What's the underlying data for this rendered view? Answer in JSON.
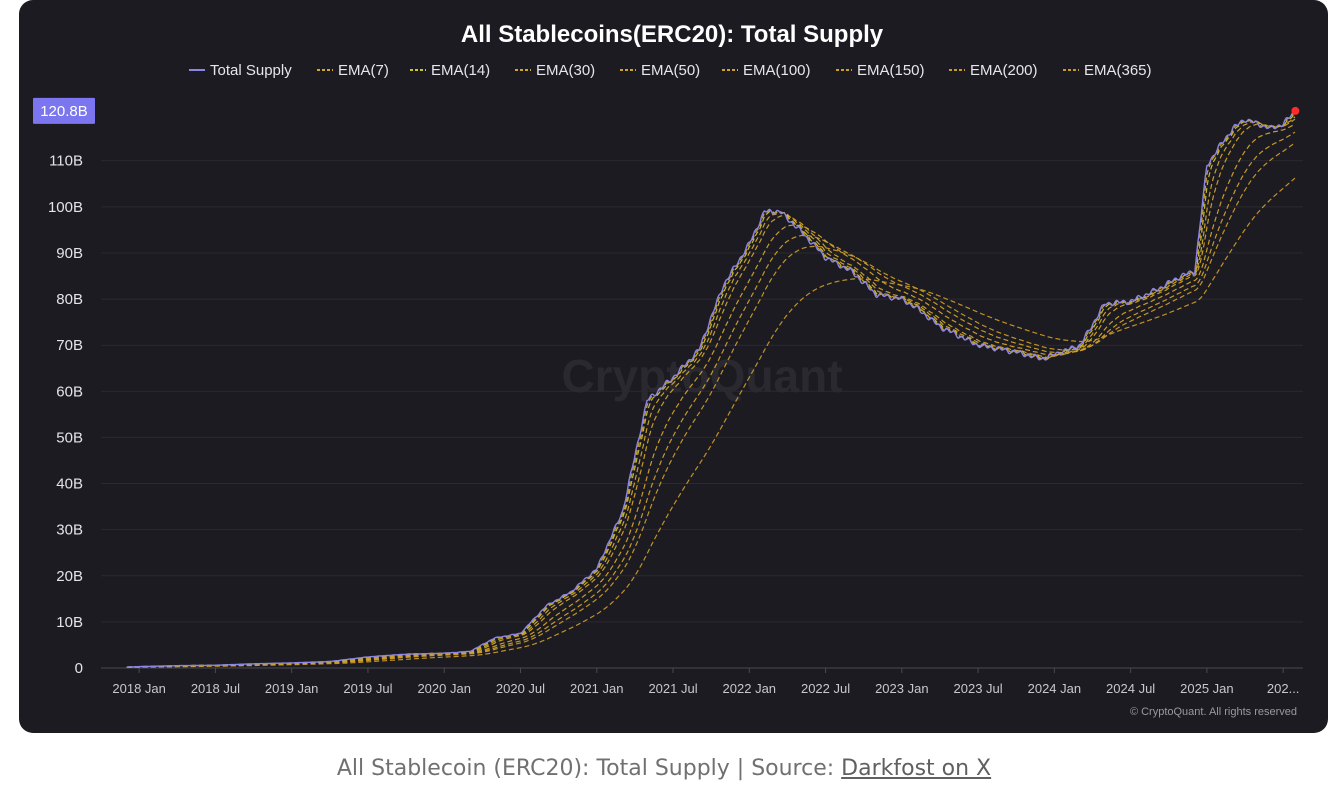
{
  "chart_data": {
    "type": "line",
    "title": "All Stablecoins(ERC20): Total Supply",
    "ylabel": "",
    "xlabel": "",
    "ylim": [
      0,
      121
    ],
    "yticks": [
      {
        "v": 0,
        "label": "0"
      },
      {
        "v": 10,
        "label": "10B"
      },
      {
        "v": 20,
        "label": "20B"
      },
      {
        "v": 30,
        "label": "30B"
      },
      {
        "v": 40,
        "label": "40B"
      },
      {
        "v": 50,
        "label": "50B"
      },
      {
        "v": 60,
        "label": "60B"
      },
      {
        "v": 70,
        "label": "70B"
      },
      {
        "v": 80,
        "label": "80B"
      },
      {
        "v": 90,
        "label": "90B"
      },
      {
        "v": 100,
        "label": "100B"
      },
      {
        "v": 110,
        "label": "110B"
      }
    ],
    "xlim": [
      2017.75,
      2025.63
    ],
    "xticks": [
      {
        "v": 2018.0,
        "label": "2018 Jan"
      },
      {
        "v": 2018.5,
        "label": "2018 Jul"
      },
      {
        "v": 2019.0,
        "label": "2019 Jan"
      },
      {
        "v": 2019.5,
        "label": "2019 Jul"
      },
      {
        "v": 2020.0,
        "label": "2020 Jan"
      },
      {
        "v": 2020.5,
        "label": "2020 Jul"
      },
      {
        "v": 2021.0,
        "label": "2021 Jan"
      },
      {
        "v": 2021.5,
        "label": "2021 Jul"
      },
      {
        "v": 2022.0,
        "label": "2022 Jan"
      },
      {
        "v": 2022.5,
        "label": "2022 Jul"
      },
      {
        "v": 2023.0,
        "label": "2023 Jan"
      },
      {
        "v": 2023.5,
        "label": "2023 Jul"
      },
      {
        "v": 2024.0,
        "label": "2024 Jan"
      },
      {
        "v": 2024.5,
        "label": "2024 Jul"
      },
      {
        "v": 2025.0,
        "label": "2025 Jan"
      },
      {
        "v": 2025.5,
        "label": "202..."
      }
    ],
    "current_value_label": "120.8B",
    "legend": [
      {
        "name": "Total Supply",
        "color": "#8b86e6",
        "dash": "solid"
      },
      {
        "name": "EMA(7)",
        "color": "#d4a72c",
        "dash": "dashed"
      },
      {
        "name": "EMA(14)",
        "color": "#cfc42a",
        "dash": "dashed"
      },
      {
        "name": "EMA(30)",
        "color": "#d2a62a",
        "dash": "dashed"
      },
      {
        "name": "EMA(50)",
        "color": "#d1a228",
        "dash": "dashed"
      },
      {
        "name": "EMA(100)",
        "color": "#d3a22a",
        "dash": "dashed"
      },
      {
        "name": "EMA(150)",
        "color": "#cda02a",
        "dash": "dashed"
      },
      {
        "name": "EMA(200)",
        "color": "#c99a28",
        "dash": "dashed"
      },
      {
        "name": "EMA(365)",
        "color": "#c89828",
        "dash": "dashed"
      }
    ],
    "series": [
      {
        "name": "Total Supply",
        "points": [
          [
            2017.92,
            0.2
          ],
          [
            2018.0,
            0.3
          ],
          [
            2018.25,
            0.5
          ],
          [
            2018.5,
            0.6
          ],
          [
            2018.75,
            0.9
          ],
          [
            2019.0,
            1.1
          ],
          [
            2019.25,
            1.4
          ],
          [
            2019.5,
            2.4
          ],
          [
            2019.75,
            3.0
          ],
          [
            2020.0,
            3.2
          ],
          [
            2020.17,
            3.6
          ],
          [
            2020.33,
            6.5
          ],
          [
            2020.5,
            7.5
          ],
          [
            2020.67,
            13.5
          ],
          [
            2020.83,
            16.5
          ],
          [
            2021.0,
            21.5
          ],
          [
            2021.17,
            34
          ],
          [
            2021.33,
            58
          ],
          [
            2021.5,
            63
          ],
          [
            2021.67,
            69
          ],
          [
            2021.83,
            83
          ],
          [
            2022.0,
            92
          ],
          [
            2022.1,
            99
          ],
          [
            2022.2,
            99
          ],
          [
            2022.33,
            95
          ],
          [
            2022.5,
            89
          ],
          [
            2022.67,
            86
          ],
          [
            2022.83,
            81
          ],
          [
            2023.0,
            80
          ],
          [
            2023.1,
            78
          ],
          [
            2023.25,
            74
          ],
          [
            2023.5,
            70
          ],
          [
            2023.75,
            68.5
          ],
          [
            2023.92,
            67
          ],
          [
            2024.0,
            68
          ],
          [
            2024.17,
            70
          ],
          [
            2024.33,
            79
          ],
          [
            2024.5,
            79.5
          ],
          [
            2024.67,
            82
          ],
          [
            2024.83,
            85
          ],
          [
            2024.92,
            86
          ],
          [
            2025.0,
            109
          ],
          [
            2025.08,
            113
          ],
          [
            2025.17,
            117
          ],
          [
            2025.25,
            119
          ],
          [
            2025.33,
            118
          ],
          [
            2025.42,
            117
          ],
          [
            2025.5,
            118
          ],
          [
            2025.58,
            120.8
          ]
        ]
      }
    ],
    "ema_note": "EMA series are smoothed lags of Total Supply; EMA(365) ends near 106B"
  },
  "watermark": "CryptoQuant",
  "copyright": "© CryptoQuant. All rights reserved",
  "caption": {
    "text": "All Stablecoin (ERC20): Total Supply | Source: ",
    "link": "Darkfost on X"
  }
}
